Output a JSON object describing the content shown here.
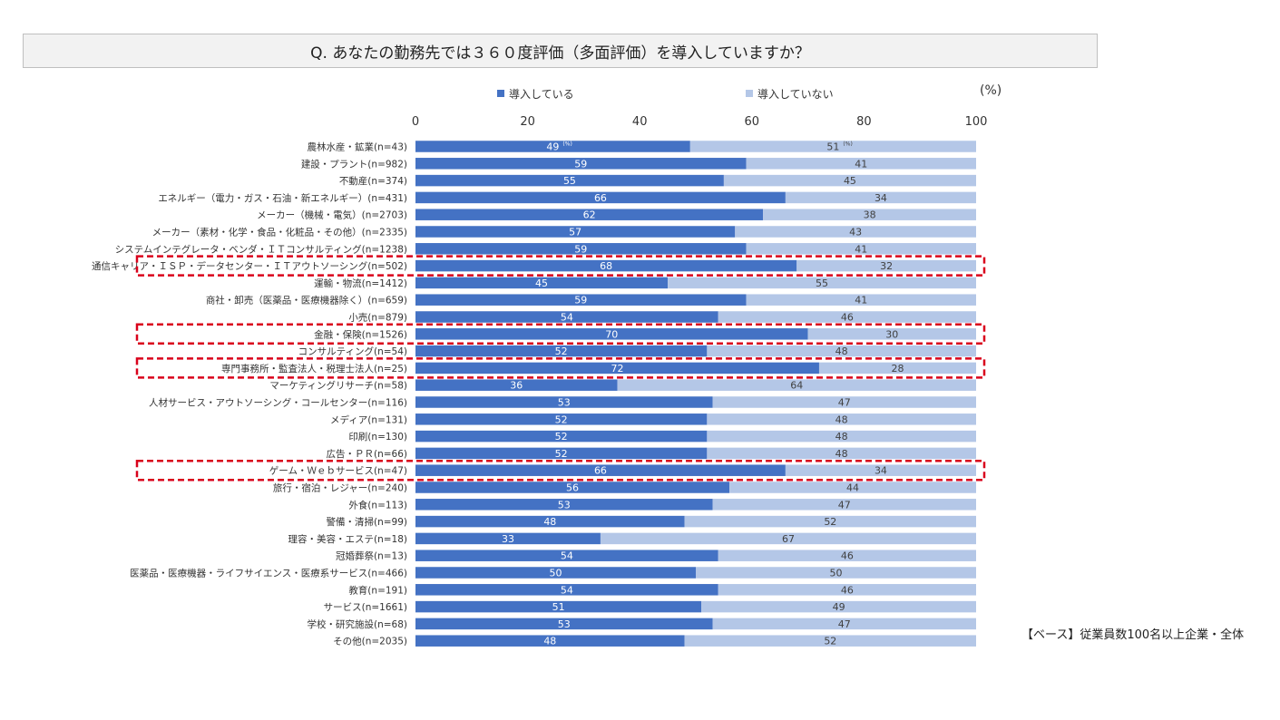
{
  "title": "Q. あなたの勤務先では３６０度評価（多面評価）を導入していますか？",
  "unit_label": "(%)",
  "base_note": "【ベース】従業員数100名以上企業・全体",
  "colors": {
    "introduced": "#4472c4",
    "not_introduced": "#b4c7e7",
    "highlight_border": "#d9001b"
  },
  "chart_data": {
    "type": "bar",
    "orientation": "horizontal",
    "stacked": true,
    "xlim": [
      0,
      100
    ],
    "xticks": [
      0,
      20,
      40,
      60,
      80,
      100
    ],
    "legend_position": "top",
    "grid": false,
    "series": [
      {
        "name": "導入している",
        "values": [
          49,
          59,
          55,
          66,
          62,
          57,
          59,
          68,
          45,
          59,
          54,
          70,
          52,
          72,
          36,
          53,
          52,
          52,
          52,
          66,
          56,
          53,
          48,
          33,
          54,
          50,
          54,
          51,
          53,
          48
        ]
      },
      {
        "name": "導入していない",
        "values": [
          51,
          41,
          45,
          34,
          38,
          43,
          41,
          32,
          55,
          41,
          46,
          30,
          48,
          28,
          64,
          47,
          48,
          48,
          48,
          34,
          44,
          47,
          52,
          67,
          46,
          50,
          46,
          49,
          47,
          52
        ]
      }
    ],
    "categories": [
      "農林水産・鉱業(n=43)",
      "建設・プラント(n=982)",
      "不動産(n=374)",
      "エネルギー（電力・ガス・石油・新エネルギー）(n=431)",
      "メーカー（機械・電気）(n=2703)",
      "メーカー（素材・化学・食品・化粧品・その他）(n=2335)",
      "システムインテグレータ・ベンダ・ＩＴコンサルティング(n=1238)",
      "通信キャリア・ＩＳＰ・データセンター・ＩＴアウトソーシング(n=502)",
      "運輸・物流(n=1412)",
      "商社・卸売（医薬品・医療機器除く）(n=659)",
      "小売(n=879)",
      "金融・保険(n=1526)",
      "コンサルティング(n=54)",
      "専門事務所・監査法人・税理士法人(n=25)",
      "マーケティングリサーチ(n=58)",
      "人材サービス・アウトソーシング・コールセンター(n=116)",
      "メディア(n=131)",
      "印刷(n=130)",
      "広告・ＰＲ(n=66)",
      "ゲーム・Ｗｅｂサービス(n=47)",
      "旅行・宿泊・レジャー(n=240)",
      "外食(n=113)",
      "警備・清掃(n=99)",
      "理容・美容・エステ(n=18)",
      "冠婚葬祭(n=13)",
      "医薬品・医療機器・ライフサイエンス・医療系サービス(n=466)",
      "教育(n=191)",
      "サービス(n=1661)",
      "学校・研究施設(n=68)",
      "その他(n=2035)"
    ],
    "first_row_value_suffix": "(%)",
    "highlighted_categories": [
      7,
      11,
      13,
      19
    ]
  }
}
